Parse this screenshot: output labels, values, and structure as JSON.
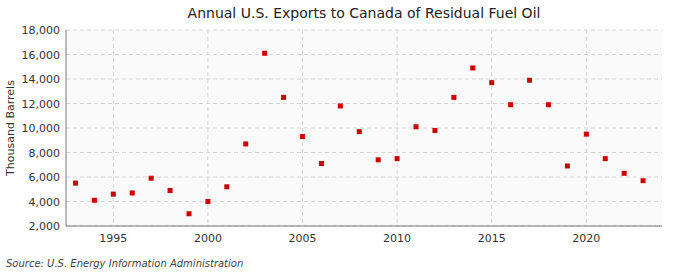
{
  "chart_data": {
    "type": "scatter",
    "title": "Annual U.S. Exports to Canada of Residual Fuel Oil",
    "ylabel": "Thousand Barrels",
    "annotations": [
      "Source: U.S. Energy Information Administration"
    ],
    "x": [
      1993,
      1994,
      1995,
      1996,
      1997,
      1998,
      1999,
      2000,
      2001,
      2002,
      2003,
      2004,
      2005,
      2006,
      2007,
      2008,
      2009,
      2010,
      2011,
      2012,
      2013,
      2014,
      2015,
      2016,
      2017,
      2018,
      2019,
      2020,
      2021,
      2022,
      2023
    ],
    "values": [
      5500,
      4100,
      4600,
      4700,
      5900,
      4900,
      3000,
      4000,
      5200,
      8700,
      16100,
      12500,
      9300,
      7100,
      11800,
      9700,
      7400,
      7500,
      10100,
      9800,
      12500,
      14900,
      13700,
      11900,
      13900,
      11900,
      6900,
      9500,
      7500,
      6300,
      5700
    ],
    "color": "#cc0000",
    "marker": "square",
    "xlim": [
      1992.5,
      2024
    ],
    "xticks": [
      1995,
      2000,
      2005,
      2010,
      2015,
      2020
    ],
    "ylim": [
      2000,
      18000
    ],
    "yticks": [
      {
        "value": 2000,
        "label": "2,000"
      },
      {
        "value": 4000,
        "label": "4,000"
      },
      {
        "value": 6000,
        "label": "6,000"
      },
      {
        "value": 8000,
        "label": "8,000"
      },
      {
        "value": 10000,
        "label": "10,000"
      },
      {
        "value": 12000,
        "label": "12,000"
      },
      {
        "value": 14000,
        "label": "14,000"
      },
      {
        "value": 16000,
        "label": "16,000"
      },
      {
        "value": 18000,
        "label": "18,000"
      }
    ],
    "grid": true
  }
}
